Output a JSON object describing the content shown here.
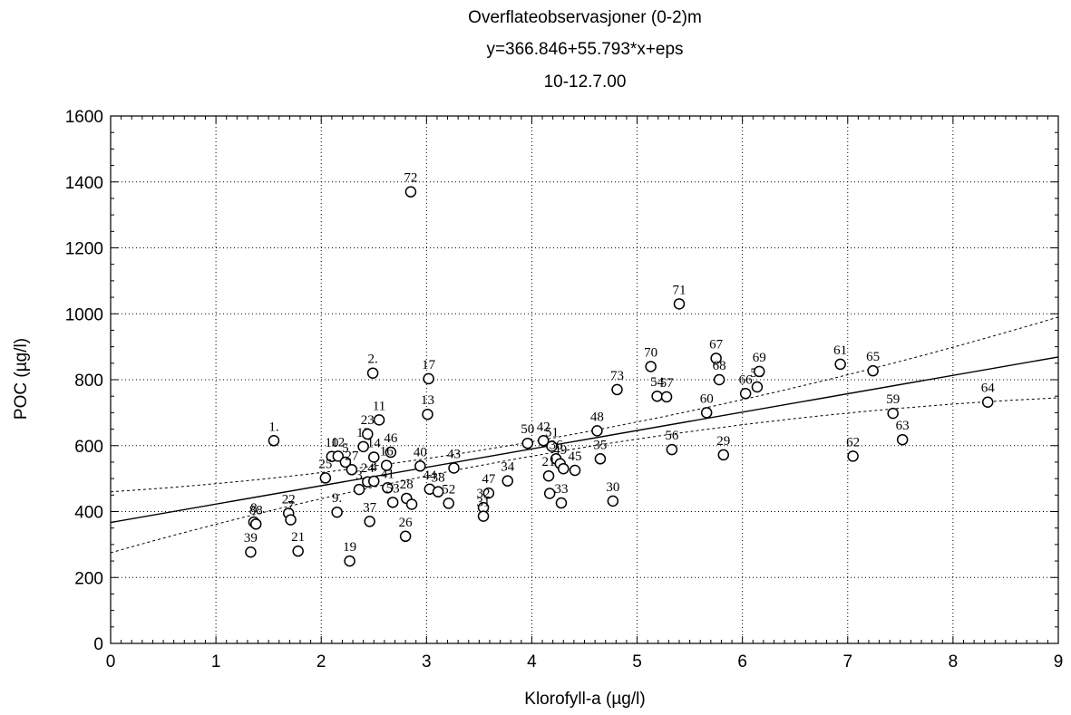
{
  "chart_data": {
    "type": "scatter",
    "title_lines": [
      "Overflateobservasjoner (0-2)m",
      "y=366.846+55.793*x+eps",
      "10-12.7.00"
    ],
    "xlabel": "Klorofyll-a (µg/l)",
    "ylabel": "POC (µg/l)",
    "xlim": [
      0,
      9
    ],
    "ylim": [
      0,
      1600
    ],
    "xticks": [
      "0",
      "1",
      "2",
      "3",
      "4",
      "5",
      "6",
      "7",
      "8",
      "9"
    ],
    "yticks": [
      "0",
      "200",
      "400",
      "600",
      "800",
      "1000",
      "1200",
      "1400",
      "1600"
    ],
    "grid": true,
    "fit": {
      "intercept": 366.846,
      "slope": 55.793
    },
    "confidence_band": {
      "lower": [
        275,
        745
      ],
      "upper": [
        460,
        990
      ]
    },
    "points": [
      {
        "label": "1.",
        "x": 1.55,
        "y": 615
      },
      {
        "label": "2.",
        "x": 2.49,
        "y": 820
      },
      {
        "label": "8",
        "x": 1.36,
        "y": 368
      },
      {
        "label": "88",
        "x": 1.38,
        "y": 362
      },
      {
        "label": "39",
        "x": 1.33,
        "y": 277
      },
      {
        "label": "22",
        "x": 1.69,
        "y": 395
      },
      {
        "label": "7",
        "x": 1.71,
        "y": 375
      },
      {
        "label": "21",
        "x": 1.78,
        "y": 280
      },
      {
        "label": "9.",
        "x": 2.15,
        "y": 398
      },
      {
        "label": "10",
        "x": 2.1,
        "y": 567
      },
      {
        "label": "12",
        "x": 2.16,
        "y": 568
      },
      {
        "label": "25",
        "x": 2.04,
        "y": 502
      },
      {
        "label": "5",
        "x": 2.23,
        "y": 550
      },
      {
        "label": "27",
        "x": 2.29,
        "y": 527
      },
      {
        "label": "15",
        "x": 2.4,
        "y": 597
      },
      {
        "label": "23",
        "x": 2.44,
        "y": 635
      },
      {
        "label": "11",
        "x": 2.55,
        "y": 678
      },
      {
        "label": "14",
        "x": 2.5,
        "y": 565
      },
      {
        "label": "46",
        "x": 2.66,
        "y": 580
      },
      {
        "label": "16",
        "x": 2.62,
        "y": 540
      },
      {
        "label": "24",
        "x": 2.44,
        "y": 490
      },
      {
        "label": "4",
        "x": 2.5,
        "y": 492
      },
      {
        "label": "41",
        "x": 2.63,
        "y": 472
      },
      {
        "label": "3",
        "x": 2.36,
        "y": 467
      },
      {
        "label": "37",
        "x": 2.46,
        "y": 370
      },
      {
        "label": "19",
        "x": 2.27,
        "y": 250
      },
      {
        "label": "53",
        "x": 2.68,
        "y": 428
      },
      {
        "label": "28",
        "x": 2.81,
        "y": 440
      },
      {
        "label": "",
        "x": 2.86,
        "y": 422
      },
      {
        "label": "26",
        "x": 2.8,
        "y": 325
      },
      {
        "label": "72",
        "x": 2.85,
        "y": 1370
      },
      {
        "label": "17",
        "x": 3.02,
        "y": 803
      },
      {
        "label": "13",
        "x": 3.01,
        "y": 695
      },
      {
        "label": "40",
        "x": 2.94,
        "y": 538
      },
      {
        "label": "43",
        "x": 3.26,
        "y": 532
      },
      {
        "label": "44",
        "x": 3.03,
        "y": 468
      },
      {
        "label": "38",
        "x": 3.11,
        "y": 460
      },
      {
        "label": "52",
        "x": 3.21,
        "y": 425
      },
      {
        "label": "34",
        "x": 3.77,
        "y": 493
      },
      {
        "label": "47",
        "x": 3.59,
        "y": 456
      },
      {
        "label": "32",
        "x": 3.54,
        "y": 412
      },
      {
        "label": "31",
        "x": 3.54,
        "y": 386
      },
      {
        "label": "50",
        "x": 3.96,
        "y": 607
      },
      {
        "label": "42",
        "x": 4.11,
        "y": 615
      },
      {
        "label": "51",
        "x": 4.19,
        "y": 598
      },
      {
        "label": "36",
        "x": 4.23,
        "y": 560
      },
      {
        "label": "49",
        "x": 4.27,
        "y": 545
      },
      {
        "label": "45",
        "x": 4.41,
        "y": 525
      },
      {
        "label": "",
        "x": 4.3,
        "y": 530
      },
      {
        "label": "21",
        "x": 4.16,
        "y": 508
      },
      {
        "label": "",
        "x": 4.17,
        "y": 455
      },
      {
        "label": "33",
        "x": 4.28,
        "y": 426
      },
      {
        "label": "48",
        "x": 4.62,
        "y": 645
      },
      {
        "label": "35",
        "x": 4.65,
        "y": 560
      },
      {
        "label": "30",
        "x": 4.77,
        "y": 432
      },
      {
        "label": "73",
        "x": 4.81,
        "y": 770
      },
      {
        "label": "70",
        "x": 5.13,
        "y": 840
      },
      {
        "label": "54",
        "x": 5.19,
        "y": 750
      },
      {
        "label": "57",
        "x": 5.28,
        "y": 748
      },
      {
        "label": "71",
        "x": 5.4,
        "y": 1030
      },
      {
        "label": "56",
        "x": 5.33,
        "y": 588
      },
      {
        "label": "67",
        "x": 5.75,
        "y": 865
      },
      {
        "label": "68",
        "x": 5.78,
        "y": 800
      },
      {
        "label": "60",
        "x": 5.66,
        "y": 700
      },
      {
        "label": "29",
        "x": 5.82,
        "y": 572
      },
      {
        "label": "66",
        "x": 6.03,
        "y": 758
      },
      {
        "label": "58",
        "x": 6.14,
        "y": 778
      },
      {
        "label": "69",
        "x": 6.16,
        "y": 825
      },
      {
        "label": "61",
        "x": 6.93,
        "y": 847
      },
      {
        "label": "65",
        "x": 7.24,
        "y": 827
      },
      {
        "label": "62",
        "x": 7.05,
        "y": 568
      },
      {
        "label": "59",
        "x": 7.43,
        "y": 698
      },
      {
        "label": "63",
        "x": 7.52,
        "y": 618
      },
      {
        "label": "64",
        "x": 8.33,
        "y": 732
      }
    ]
  }
}
